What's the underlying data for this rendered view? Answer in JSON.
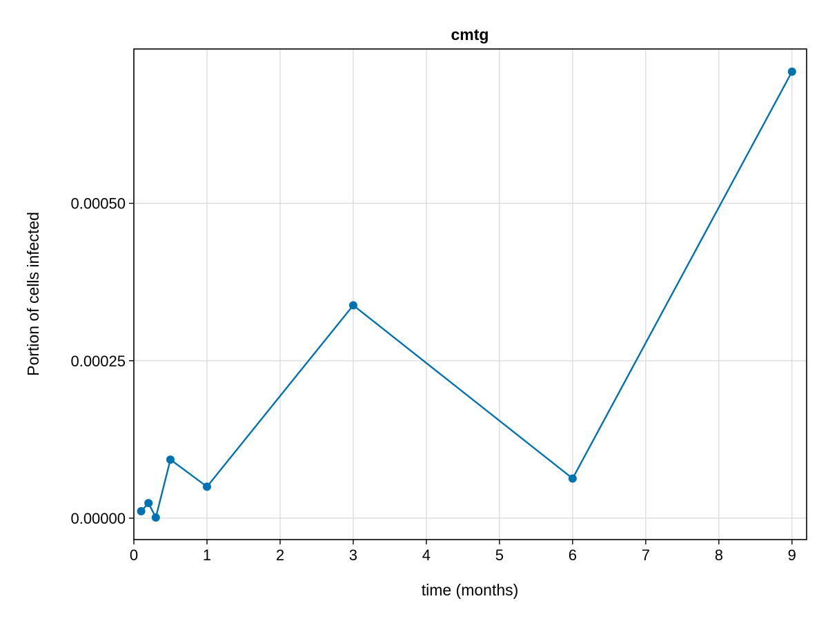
{
  "chart_data": {
    "type": "line",
    "title": "cmtg",
    "xlabel": "time (months)",
    "ylabel": "Portion of cells infected",
    "xlim": [
      0,
      9.2
    ],
    "ylim": [
      -3.4e-05,
      0.000745
    ],
    "x_ticks": [
      0,
      1,
      2,
      3,
      4,
      5,
      6,
      7,
      8,
      9
    ],
    "x_tick_labels": [
      "0",
      "1",
      "2",
      "3",
      "4",
      "5",
      "6",
      "7",
      "8",
      "9"
    ],
    "y_ticks": [
      0,
      0.00025,
      0.0005
    ],
    "y_tick_labels": [
      "0.00000",
      "0.00025",
      "0.00050"
    ],
    "grid": true,
    "legend": "none",
    "series": [
      {
        "color": "#0072b2",
        "marker": "circle",
        "x": [
          0.1,
          0.2,
          0.3,
          0.5,
          1,
          3,
          6,
          9
        ],
        "y": [
          1.1e-05,
          2.4e-05,
          1e-06,
          9.3e-05,
          5e-05,
          0.000338,
          6.3e-05,
          0.000709
        ]
      }
    ]
  }
}
